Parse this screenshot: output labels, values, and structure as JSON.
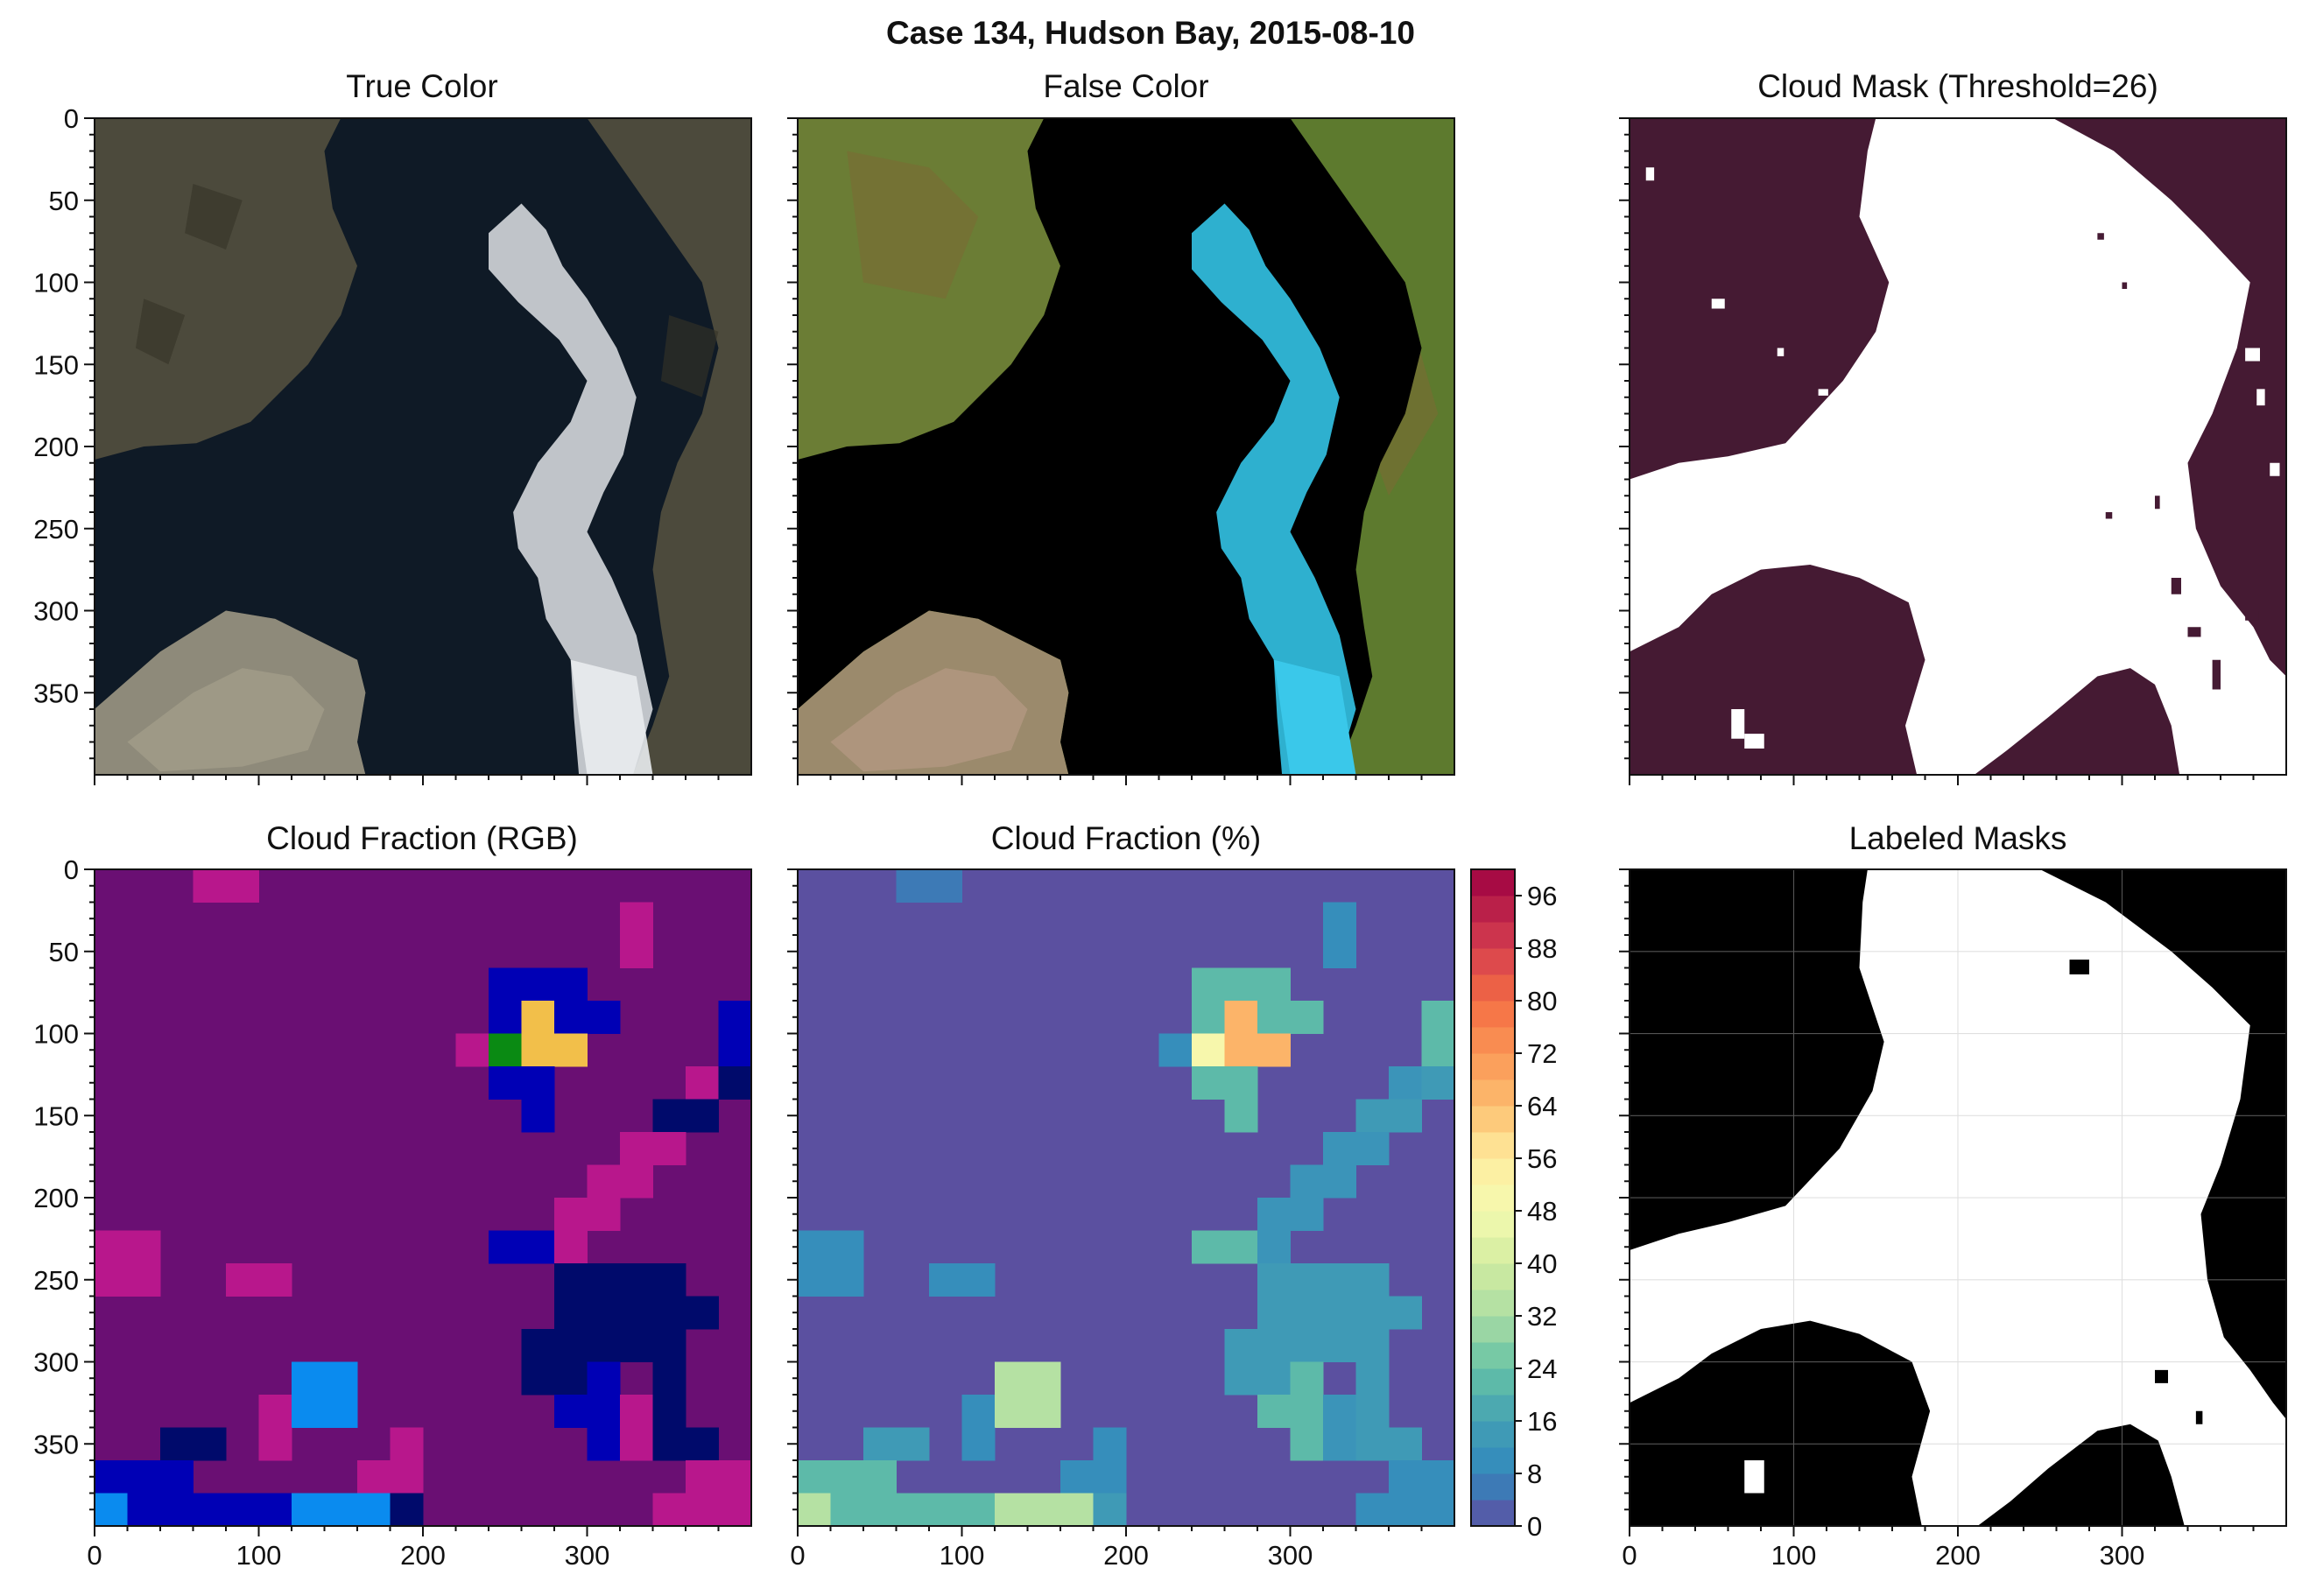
{
  "figure": {
    "title": "Case 134, Hudson Bay, 2015-08-10"
  },
  "panels": [
    {
      "id": "true-color",
      "title": "True Color"
    },
    {
      "id": "false-color",
      "title": "False Color"
    },
    {
      "id": "cloud-mask",
      "title": "Cloud Mask (Threshold=26)"
    },
    {
      "id": "cloud-fraction-rgb",
      "title": "Cloud Fraction (RGB)"
    },
    {
      "id": "cloud-fraction-pct",
      "title": "Cloud Fraction (%)"
    },
    {
      "id": "labeled-masks",
      "title": "Labeled Masks"
    }
  ],
  "axes": {
    "y_ticks": [
      "0",
      "50",
      "100",
      "150",
      "200",
      "250",
      "300",
      "350"
    ],
    "x_ticks": [
      "0",
      "100",
      "200",
      "300"
    ]
  },
  "colorbar": {
    "ticks": [
      "0",
      "8",
      "16",
      "24",
      "32",
      "40",
      "48",
      "56",
      "64",
      "72",
      "80",
      "88",
      "96"
    ],
    "range": [
      0,
      100
    ],
    "colormap": "Spectral_r"
  },
  "colors": {
    "land_true": "#4c4a3c",
    "water_true": "#0f1a26",
    "ice_true": "#dfe3e6",
    "land_false": "#5d7a2e",
    "water_false": "#000000",
    "ice_false": "#33c3e6",
    "mask_bg": "#451a33",
    "mask_fg": "#ffffff",
    "label_bg": "#000000",
    "label_fg": "#ffffff",
    "rgb_bg": "#6a0f73",
    "pct_bg": "#5b50a0"
  }
}
